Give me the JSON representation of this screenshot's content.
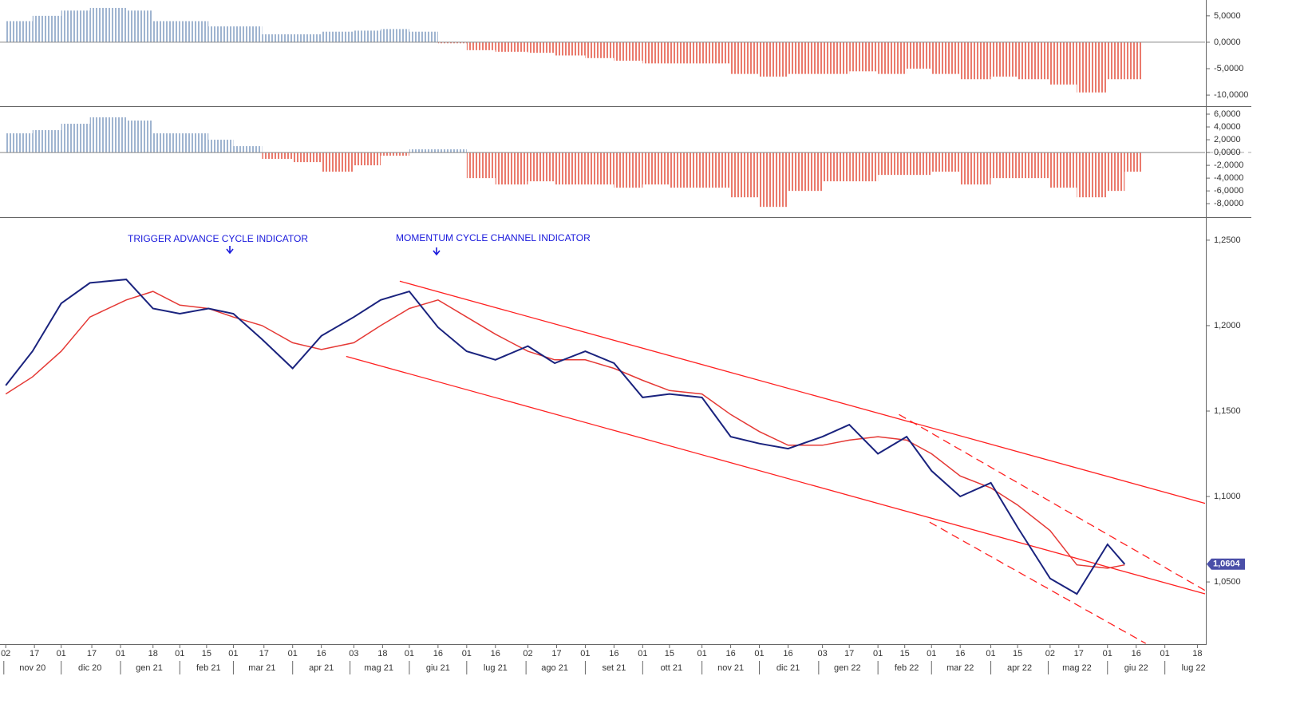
{
  "chart_data": [
    {
      "type": "bar",
      "colors": {
        "positive": "#9fb4d0",
        "negative": "#ea7a6c"
      },
      "x": [
        "2020-11-02",
        "2020-11-16",
        "2020-12-01",
        "2020-12-16",
        "2021-01-04",
        "2021-01-18",
        "2021-02-01",
        "2021-02-16",
        "2021-03-01",
        "2021-03-16",
        "2021-04-01",
        "2021-04-16",
        "2021-05-03",
        "2021-05-17",
        "2021-06-01",
        "2021-06-16",
        "2021-07-01",
        "2021-07-16",
        "2021-08-02",
        "2021-08-16",
        "2021-09-01",
        "2021-09-16",
        "2021-10-01",
        "2021-10-15",
        "2021-11-01",
        "2021-11-16",
        "2021-12-01",
        "2021-12-16",
        "2022-01-03",
        "2022-01-17",
        "2022-02-01",
        "2022-02-16",
        "2022-03-01",
        "2022-03-16",
        "2022-04-01",
        "2022-04-15",
        "2022-05-02",
        "2022-05-16",
        "2022-06-01",
        "2022-06-10"
      ],
      "values": [
        4,
        5,
        6,
        6.5,
        6,
        4,
        4,
        3,
        3,
        1.5,
        1.5,
        2,
        2.2,
        2.5,
        2,
        -0.2,
        -1.5,
        -1.8,
        -2,
        -2.5,
        -3,
        -3.5,
        -4,
        -4,
        -4,
        -6,
        -6.5,
        -6,
        -6,
        -5.5,
        -6,
        -5,
        -6,
        -7,
        -6.5,
        -7,
        -8,
        -9.5,
        -7,
        -7
      ],
      "ylim": [
        -12.1,
        8
      ],
      "yticks": [
        {
          "value": 5,
          "label": "5,0000"
        },
        {
          "value": 0,
          "label": "0,0000"
        },
        {
          "value": -5,
          "label": "-5,0000"
        },
        {
          "value": -10,
          "label": "-10,0000"
        }
      ]
    },
    {
      "type": "bar",
      "colors": {
        "positive": "#9fb4d0",
        "negative": "#ea7a6c"
      },
      "x": [
        "2020-11-02",
        "2020-11-16",
        "2020-12-01",
        "2020-12-16",
        "2021-01-04",
        "2021-01-18",
        "2021-02-01",
        "2021-02-16",
        "2021-03-01",
        "2021-03-16",
        "2021-04-01",
        "2021-04-16",
        "2021-05-03",
        "2021-05-17",
        "2021-06-01",
        "2021-06-16",
        "2021-07-01",
        "2021-07-16",
        "2021-08-02",
        "2021-08-16",
        "2021-09-01",
        "2021-09-16",
        "2021-10-01",
        "2021-10-15",
        "2021-11-01",
        "2021-11-16",
        "2021-12-01",
        "2021-12-16",
        "2022-01-03",
        "2022-01-17",
        "2022-02-01",
        "2022-02-16",
        "2022-03-01",
        "2022-03-16",
        "2022-04-01",
        "2022-04-15",
        "2022-05-02",
        "2022-05-16",
        "2022-06-01",
        "2022-06-10"
      ],
      "values": [
        3,
        3.5,
        4.5,
        5.5,
        5,
        3,
        3,
        2,
        1,
        -1,
        -1.5,
        -3,
        -2,
        -0.5,
        0.5,
        0.5,
        -4,
        -5,
        -4.5,
        -5,
        -5,
        -5.5,
        -5,
        -5.5,
        -5.5,
        -7,
        -8.5,
        -6,
        -4.5,
        -4.5,
        -3.5,
        -3.5,
        -3,
        -5,
        -4,
        -4,
        -5.5,
        -7,
        -6,
        -3
      ],
      "ylim": [
        -10.1,
        7
      ],
      "yticks": [
        {
          "value": 6,
          "label": "6,0000"
        },
        {
          "value": 4,
          "label": "4,0000"
        },
        {
          "value": 2,
          "label": "2,0000"
        },
        {
          "value": 0,
          "label": "0,0000"
        },
        {
          "value": -2,
          "label": "-2,0000"
        },
        {
          "value": -4,
          "label": "-4,0000"
        },
        {
          "value": -6,
          "label": "-6,0000"
        },
        {
          "value": -8,
          "label": "-8,0000"
        }
      ]
    },
    {
      "type": "line",
      "x": [
        "2020-11-02",
        "2020-11-16",
        "2020-12-01",
        "2020-12-16",
        "2021-01-04",
        "2021-01-18",
        "2021-02-01",
        "2021-02-16",
        "2021-03-01",
        "2021-03-16",
        "2021-04-01",
        "2021-04-16",
        "2021-05-03",
        "2021-05-17",
        "2021-06-01",
        "2021-06-16",
        "2021-07-01",
        "2021-07-16",
        "2021-08-02",
        "2021-08-16",
        "2021-09-01",
        "2021-09-16",
        "2021-10-01",
        "2021-10-15",
        "2021-11-01",
        "2021-11-16",
        "2021-12-01",
        "2021-12-16",
        "2022-01-03",
        "2022-01-17",
        "2022-02-01",
        "2022-02-16",
        "2022-03-01",
        "2022-03-16",
        "2022-04-01",
        "2022-04-15",
        "2022-05-02",
        "2022-05-16",
        "2022-06-01",
        "2022-06-10"
      ],
      "series": [
        {
          "color": "#1a237e",
          "values": [
            1.165,
            1.185,
            1.213,
            1.225,
            1.227,
            1.21,
            1.207,
            1.21,
            1.207,
            1.192,
            1.175,
            1.194,
            1.205,
            1.215,
            1.22,
            1.199,
            1.185,
            1.18,
            1.188,
            1.178,
            1.185,
            1.178,
            1.158,
            1.16,
            1.158,
            1.135,
            1.131,
            1.128,
            1.135,
            1.142,
            1.125,
            1.135,
            1.115,
            1.1,
            1.108,
            1.082,
            1.052,
            1.043,
            1.072,
            1.0604
          ],
          "value_labels": [
            null,
            null,
            null,
            null,
            null,
            null,
            null,
            null,
            null,
            null,
            null,
            null,
            null,
            null,
            null,
            null,
            null,
            null,
            null,
            null,
            null,
            null,
            null,
            null,
            null,
            null,
            null,
            null,
            null,
            null,
            null,
            null,
            null,
            null,
            null,
            null,
            null,
            null,
            null,
            "1,0604"
          ]
        },
        {
          "color": "#e53935",
          "values": [
            1.16,
            1.17,
            1.185,
            1.205,
            1.215,
            1.22,
            1.212,
            1.21,
            1.205,
            1.2,
            1.19,
            1.186,
            1.19,
            1.2,
            1.21,
            1.215,
            1.205,
            1.195,
            1.185,
            1.18,
            1.18,
            1.175,
            1.168,
            1.162,
            1.16,
            1.148,
            1.138,
            1.13,
            1.13,
            1.133,
            1.135,
            1.133,
            1.125,
            1.112,
            1.105,
            1.095,
            1.08,
            1.06,
            1.058,
            1.06
          ]
        }
      ],
      "lines": [
        {
          "style": "solid",
          "color": "#ff2020",
          "x": [
            "2021-05-27",
            "2022-07-22"
          ],
          "y": [
            1.226,
            1.096
          ]
        },
        {
          "style": "solid",
          "color": "#ff2020",
          "x": [
            "2021-04-29",
            "2022-07-22"
          ],
          "y": [
            1.182,
            1.043
          ]
        },
        {
          "style": "dashed",
          "color": "#ff2020",
          "x": [
            "2022-02-12",
            "2022-07-22"
          ],
          "y": [
            1.148,
            1.045
          ]
        },
        {
          "style": "dashed",
          "color": "#ff2020",
          "x": [
            "2022-02-28",
            "2022-06-21"
          ],
          "y": [
            1.085,
            1.014
          ]
        }
      ],
      "annotations": [
        "TRIGGER ADVANCE CYCLE INDICATOR",
        "MOMENTUM CYCLE CHANNEL INDICATOR"
      ],
      "ylim": [
        1.0136,
        1.2621
      ],
      "yticks": [
        {
          "value": 1.25,
          "label": "1,2500"
        },
        {
          "value": 1.2,
          "label": "1,2000"
        },
        {
          "value": 1.15,
          "label": "1,1500"
        },
        {
          "value": 1.1,
          "label": "1,1000"
        },
        {
          "value": 1.05,
          "label": "1,0500"
        }
      ],
      "xlim": [
        "2020-10-30",
        "2022-07-22"
      ],
      "xticks": [
        {
          "value": "2020-11-02",
          "label": "02"
        },
        {
          "value": "2020-11-17",
          "label": "17"
        },
        {
          "value": "2020-12-01",
          "label": "01"
        },
        {
          "value": "2020-12-17",
          "label": "17"
        },
        {
          "value": "2021-01-01",
          "label": "01"
        },
        {
          "value": "2021-01-18",
          "label": "18"
        },
        {
          "value": "2021-02-01",
          "label": "01"
        },
        {
          "value": "2021-02-15",
          "label": "15"
        },
        {
          "value": "2021-03-01",
          "label": "01"
        },
        {
          "value": "2021-03-17",
          "label": "17"
        },
        {
          "value": "2021-04-01",
          "label": "01"
        },
        {
          "value": "2021-04-16",
          "label": "16"
        },
        {
          "value": "2021-05-03",
          "label": "03"
        },
        {
          "value": "2021-05-18",
          "label": "18"
        },
        {
          "value": "2021-06-01",
          "label": "01"
        },
        {
          "value": "2021-06-16",
          "label": "16"
        },
        {
          "value": "2021-07-01",
          "label": "01"
        },
        {
          "value": "2021-07-16",
          "label": "16"
        },
        {
          "value": "2021-08-02",
          "label": "02"
        },
        {
          "value": "2021-08-17",
          "label": "17"
        },
        {
          "value": "2021-09-01",
          "label": "01"
        },
        {
          "value": "2021-09-16",
          "label": "16"
        },
        {
          "value": "2021-10-01",
          "label": "01"
        },
        {
          "value": "2021-10-15",
          "label": "15"
        },
        {
          "value": "2021-11-01",
          "label": "01"
        },
        {
          "value": "2021-11-16",
          "label": "16"
        },
        {
          "value": "2021-12-01",
          "label": "01"
        },
        {
          "value": "2021-12-16",
          "label": "16"
        },
        {
          "value": "2022-01-03",
          "label": "03"
        },
        {
          "value": "2022-01-17",
          "label": "17"
        },
        {
          "value": "2022-02-01",
          "label": "01"
        },
        {
          "value": "2022-02-15",
          "label": "15"
        },
        {
          "value": "2022-03-01",
          "label": "01"
        },
        {
          "value": "2022-03-16",
          "label": "16"
        },
        {
          "value": "2022-04-01",
          "label": "01"
        },
        {
          "value": "2022-04-15",
          "label": "15"
        },
        {
          "value": "2022-05-02",
          "label": "02"
        },
        {
          "value": "2022-05-17",
          "label": "17"
        },
        {
          "value": "2022-06-01",
          "label": "01"
        },
        {
          "value": "2022-06-16",
          "label": "16"
        },
        {
          "value": "2022-07-01",
          "label": "01"
        },
        {
          "value": "2022-07-18",
          "label": "18"
        }
      ],
      "month_ticks": [
        {
          "value": "2020-11-01",
          "label": "nov 20"
        },
        {
          "value": "2020-12-01",
          "label": "dic 20"
        },
        {
          "value": "2021-01-01",
          "label": "gen 21"
        },
        {
          "value": "2021-02-01",
          "label": "feb 21"
        },
        {
          "value": "2021-03-01",
          "label": "mar 21"
        },
        {
          "value": "2021-04-01",
          "label": "apr 21"
        },
        {
          "value": "2021-05-01",
          "label": "mag 21"
        },
        {
          "value": "2021-06-01",
          "label": "giu 21"
        },
        {
          "value": "2021-07-01",
          "label": "lug 21"
        },
        {
          "value": "2021-08-01",
          "label": "ago 21"
        },
        {
          "value": "2021-09-01",
          "label": "set 21"
        },
        {
          "value": "2021-10-01",
          "label": "ott 21"
        },
        {
          "value": "2021-11-01",
          "label": "nov 21"
        },
        {
          "value": "2021-12-01",
          "label": "dic 21"
        },
        {
          "value": "2022-01-01",
          "label": "gen 22"
        },
        {
          "value": "2022-02-01",
          "label": "feb 22"
        },
        {
          "value": "2022-03-01",
          "label": "mar 22"
        },
        {
          "value": "2022-04-01",
          "label": "apr 22"
        },
        {
          "value": "2022-05-01",
          "label": "mag 22"
        },
        {
          "value": "2022-06-01",
          "label": "giu 22"
        },
        {
          "value": "2022-07-01",
          "label": "lug 22"
        }
      ]
    }
  ]
}
